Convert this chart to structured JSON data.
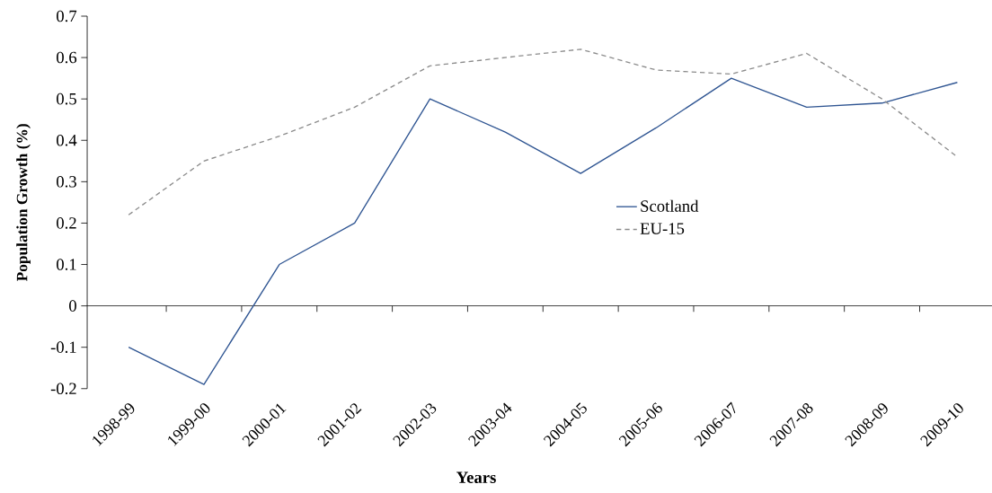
{
  "chart_data": {
    "type": "line",
    "xlabel": "Years",
    "ylabel": "Population Growth (%)",
    "categories": [
      "1998-99",
      "1999-00",
      "2000-01",
      "2001-02",
      "2002-03",
      "2003-04",
      "2004-05",
      "2005-06",
      "2006-07",
      "2007-08",
      "2008-09",
      "2009-10"
    ],
    "series": [
      {
        "name": "Scotland",
        "color": "#2f5592",
        "line_style": "solid",
        "values": [
          -0.1,
          -0.19,
          0.1,
          0.2,
          0.5,
          0.42,
          0.32,
          0.43,
          0.55,
          0.48,
          0.49,
          0.54
        ]
      },
      {
        "name": "EU-15",
        "color": "#8c8c8c",
        "line_style": "dashed",
        "values": [
          0.22,
          0.35,
          0.41,
          0.48,
          0.58,
          0.6,
          0.62,
          0.57,
          0.56,
          0.61,
          0.5,
          0.36
        ]
      }
    ],
    "ylim": [
      -0.2,
      0.7
    ],
    "yticks": [
      -0.2,
      -0.1,
      0,
      0.1,
      0.2,
      0.3,
      0.4,
      0.5,
      0.6,
      0.7
    ],
    "legend": "center",
    "marker": "none"
  }
}
